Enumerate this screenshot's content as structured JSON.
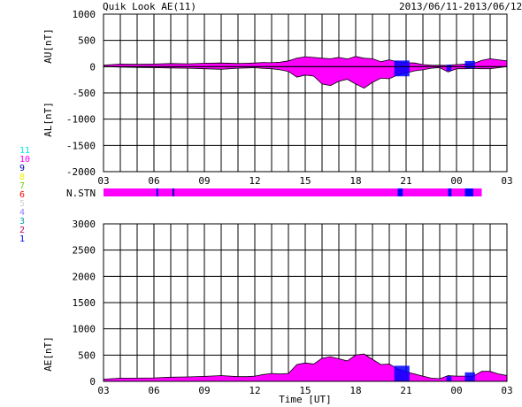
{
  "header": {
    "title": "Quik Look AE(11)",
    "date_range": "2013/06/11-2013/06/12"
  },
  "station_legend": {
    "items": [
      {
        "label": "11",
        "color": "#00e8e8"
      },
      {
        "label": "10",
        "color": "#ff00ff"
      },
      {
        "label": "9",
        "color": "#0000aa"
      },
      {
        "label": "8",
        "color": "#f0f000"
      },
      {
        "label": "7",
        "color": "#7cd000"
      },
      {
        "label": "6",
        "color": "#ff0000"
      },
      {
        "label": "5",
        "color": "#d0d0d0"
      },
      {
        "label": "4",
        "color": "#9080ff"
      },
      {
        "label": "3",
        "color": "#00a0a0"
      },
      {
        "label": "2",
        "color": "#c00060"
      },
      {
        "label": "1",
        "color": "#0000ff"
      }
    ]
  },
  "chart_data": [
    {
      "type": "area",
      "name": "AU/AL panel",
      "ylabel_top": "AU[nT]",
      "ylabel_bottom": "AL[nT]",
      "ylim": [
        -2000,
        1000
      ],
      "yticks": [
        1000,
        500,
        0,
        -500,
        -1000,
        -1500,
        -2000
      ],
      "xlim": [
        0,
        24
      ],
      "xticks": [
        "03",
        "06",
        "09",
        "12",
        "15",
        "18",
        "21",
        "00",
        "03"
      ],
      "grid": true,
      "fill_color": "#ff00ff",
      "series": [
        {
          "x": [
            0,
            0.5,
            1,
            2,
            3,
            4,
            5,
            6,
            7,
            8,
            8.5,
            9,
            9.5,
            10,
            10.5,
            11,
            11.5,
            12,
            12.5,
            13,
            13.5,
            14,
            14.5,
            15,
            15.5,
            16,
            16.5,
            17,
            17.5,
            18,
            18.5,
            19,
            19.5,
            20,
            20.5,
            21,
            21.5,
            22,
            22.5,
            23,
            23.5,
            24
          ],
          "values": [
            30,
            40,
            50,
            45,
            50,
            60,
            55,
            65,
            70,
            60,
            65,
            70,
            80,
            75,
            85,
            110,
            160,
            190,
            175,
            160,
            150,
            175,
            145,
            195,
            160,
            150,
            95,
            130,
            90,
            75,
            70,
            40,
            30,
            25,
            30,
            40,
            50,
            60,
            120,
            150,
            130,
            110
          ]
        },
        {
          "x": [
            0,
            0.5,
            1,
            2,
            3,
            4,
            5,
            6,
            7,
            8,
            8.5,
            9,
            9.5,
            10,
            10.5,
            11,
            11.5,
            12,
            12.5,
            13,
            13.5,
            14,
            14.5,
            15,
            15.5,
            16,
            16.5,
            17,
            17.5,
            18,
            18.5,
            19,
            19.5,
            20,
            20.5,
            21,
            21.5,
            22,
            22.5,
            23,
            23.5,
            24
          ],
          "values": [
            0,
            -5,
            -10,
            -15,
            -20,
            -25,
            -30,
            -40,
            -50,
            -30,
            -25,
            -20,
            -35,
            -40,
            -60,
            -90,
            -200,
            -160,
            -180,
            -330,
            -360,
            -280,
            -240,
            -330,
            -410,
            -300,
            -220,
            -230,
            -160,
            -120,
            -80,
            -60,
            -30,
            -20,
            -100,
            -40,
            -40,
            -35,
            -40,
            -40,
            -20,
            0
          ]
        }
      ]
    },
    {
      "type": "area",
      "name": "AE panel",
      "ylabel": "AE[nT]",
      "xlabel": "Time [UT]",
      "ylim": [
        0,
        3000
      ],
      "yticks": [
        3000,
        2500,
        2000,
        1500,
        1000,
        500,
        0
      ],
      "xlim": [
        0,
        24
      ],
      "xticks": [
        "03",
        "06",
        "09",
        "12",
        "15",
        "18",
        "21",
        "00",
        "03"
      ],
      "grid": true,
      "fill_color": "#ff00ff",
      "series": [
        {
          "x": [
            0,
            0.5,
            1,
            2,
            3,
            4,
            5,
            6,
            7,
            8,
            8.5,
            9,
            9.5,
            10,
            10.5,
            11,
            11.5,
            12,
            12.5,
            13,
            13.5,
            14,
            14.5,
            15,
            15.5,
            16,
            16.5,
            17,
            17.5,
            18,
            18.5,
            19,
            19.5,
            20,
            20.5,
            21,
            21.5,
            22,
            22.5,
            23,
            23.5,
            24
          ],
          "values": [
            40,
            50,
            60,
            60,
            65,
            80,
            85,
            95,
            110,
            90,
            90,
            100,
            130,
            150,
            140,
            150,
            320,
            350,
            330,
            440,
            470,
            430,
            390,
            500,
            520,
            420,
            320,
            330,
            240,
            180,
            140,
            100,
            60,
            50,
            110,
            100,
            100,
            100,
            190,
            190,
            140,
            110
          ]
        }
      ]
    }
  ],
  "nstn": {
    "label": "N.STN",
    "base_color": "#ff00ff",
    "end_hour": 22.5,
    "segments": [
      {
        "start": 3.15,
        "end": 3.25,
        "color": "#0000ff"
      },
      {
        "start": 4.1,
        "end": 4.2,
        "color": "#0000aa"
      },
      {
        "start": 17.5,
        "end": 17.8,
        "color": "#0000ff"
      },
      {
        "start": 20.5,
        "end": 20.7,
        "color": "#0000ff"
      },
      {
        "start": 21.5,
        "end": 22.0,
        "color": "#0000ff"
      }
    ]
  },
  "dropout_segments_hours": [
    {
      "start": 17.3,
      "end": 18.2
    },
    {
      "start": 20.4,
      "end": 20.7
    },
    {
      "start": 21.5,
      "end": 22.1
    }
  ]
}
